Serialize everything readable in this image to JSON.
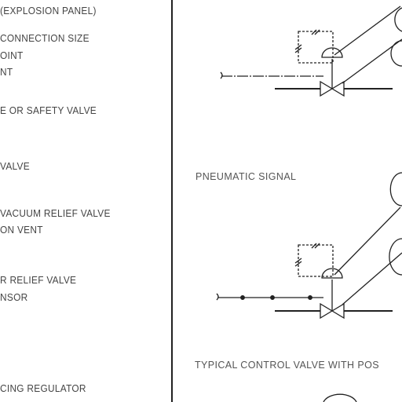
{
  "legend": {
    "items": [
      {
        "id": "l1",
        "text": "(EXPLOSION PANEL)"
      },
      {
        "id": "l2",
        "text": "CONNECTION SIZE"
      },
      {
        "id": "l3",
        "text": "OINT"
      },
      {
        "id": "l4",
        "text": "NT"
      },
      {
        "id": "l5",
        "text": "E OR SAFETY VALVE"
      },
      {
        "id": "l6",
        "text": "VALVE"
      },
      {
        "id": "l7",
        "text": "VACUUM RELIEF VALVE"
      },
      {
        "id": "l8",
        "text": "ON VENT"
      },
      {
        "id": "l9",
        "text": "R RELIEF VALVE"
      },
      {
        "id": "l10",
        "text": "NSOR"
      },
      {
        "id": "l11",
        "text": "CING REGULATOR"
      }
    ]
  },
  "diagrams": {
    "signal_caption": "PNEUMATIC SIGNAL",
    "control_caption": "TYPICAL CONTROL VALVE WITH POS"
  },
  "colors": {
    "line": "#222222",
    "text": "#444444",
    "background": "#ffffff"
  }
}
